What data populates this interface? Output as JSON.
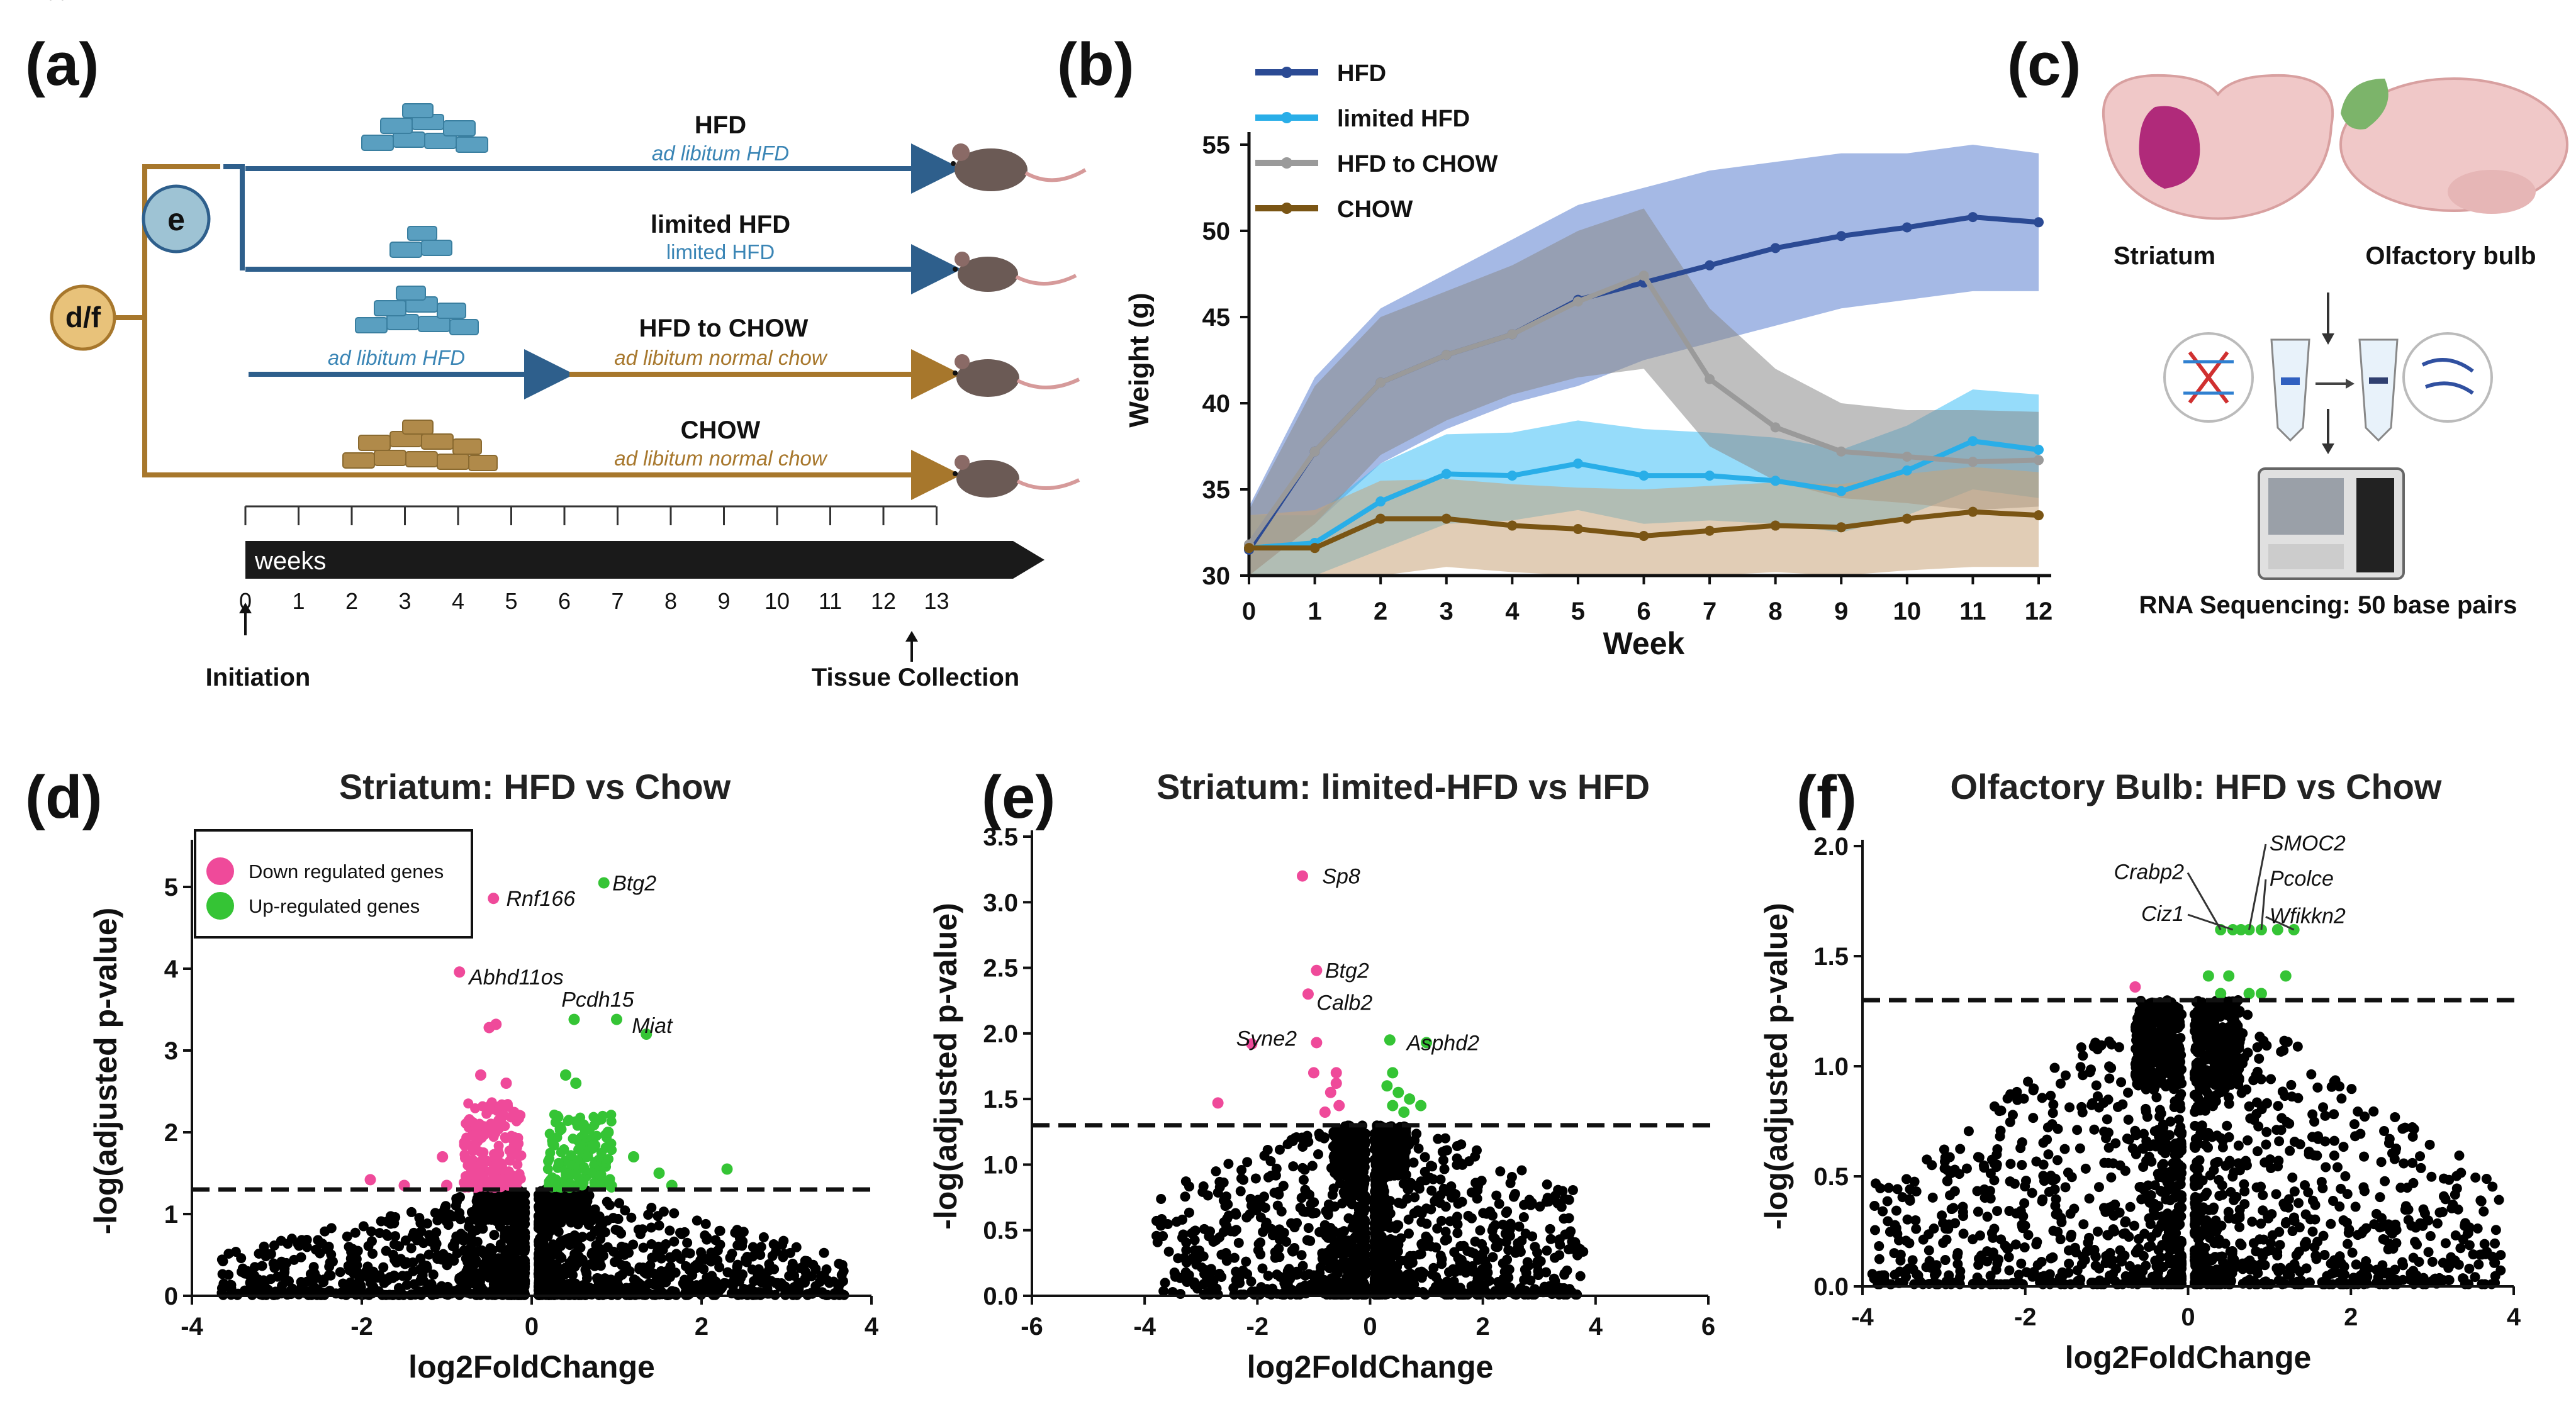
{
  "panel_labels": {
    "a": "(a)",
    "b": "(b)",
    "c": "(c)",
    "d": "(d)",
    "e": "(e)",
    "f": "(f)"
  },
  "colors": {
    "hfd": "#2b4a94",
    "limited": "#29aee8",
    "hfd_to_chow": "#9a9a9a",
    "chow": "#7a5514",
    "down": "#ef4a9a",
    "up": "#35c435",
    "black": "#000000",
    "arm_blue": "#2e5f8c",
    "arm_brown": "#a7772c"
  },
  "panel_a": {
    "node_df": "d/f",
    "node_e": "e",
    "groups": [
      {
        "name": "HFD",
        "sub": "ad libitum HFD"
      },
      {
        "name": "limited HFD",
        "sub": "limited HFD"
      },
      {
        "name": "HFD to CHOW",
        "sub_left": "ad libitum HFD",
        "sub_right": "ad libitum normal chow"
      },
      {
        "name": "CHOW",
        "sub": "ad libitum normal chow"
      }
    ],
    "timeline_label": "weeks",
    "weeks": [
      "0",
      "1",
      "2",
      "3",
      "4",
      "5",
      "6",
      "7",
      "8",
      "9",
      "10",
      "11",
      "12",
      "13"
    ],
    "initiation": "Initiation",
    "collection": "Tissue Collection"
  },
  "panel_c": {
    "striatum": "Striatum",
    "olfactory": "Olfactory bulb",
    "sequencing": "RNA Sequencing: 50 base pairs"
  },
  "chart_data": [
    {
      "panel": "b",
      "type": "line",
      "title": "",
      "xlabel": "Week",
      "ylabel": "Weight (g)",
      "xlim": [
        0,
        12
      ],
      "ylim": [
        30,
        55
      ],
      "x": [
        0,
        1,
        2,
        3,
        4,
        5,
        6,
        7,
        8,
        9,
        10,
        11,
        12
      ],
      "xticks": [
        "0",
        "1",
        "2",
        "3",
        "4",
        "5",
        "6",
        "7",
        "8",
        "9",
        "10",
        "11",
        "12"
      ],
      "yticks": [
        "30",
        "35",
        "40",
        "45",
        "50",
        "55"
      ],
      "legend": "top-left",
      "series": [
        {
          "name": "HFD",
          "values": [
            31.5,
            37.2,
            41.2,
            42.8,
            44.0,
            46.0,
            47.0,
            48.0,
            49.0,
            49.7,
            50.2,
            50.8,
            50.5
          ],
          "lower": [
            29.5,
            33.0,
            36.5,
            38.5,
            40.0,
            41.0,
            42.5,
            43.5,
            44.5,
            45.5,
            46.0,
            46.5,
            46.5
          ],
          "upper": [
            34.0,
            41.5,
            45.5,
            47.5,
            49.5,
            51.5,
            52.5,
            53.5,
            54.0,
            54.5,
            54.5,
            55.0,
            54.5
          ]
        },
        {
          "name": "limited HFD",
          "values": [
            31.6,
            31.9,
            34.3,
            35.9,
            35.8,
            36.5,
            35.8,
            35.8,
            35.5,
            34.9,
            36.1,
            37.8,
            37.3
          ],
          "lower": [
            30.0,
            30.0,
            31.5,
            33.0,
            33.2,
            33.8,
            33.0,
            33.2,
            33.0,
            32.5,
            33.5,
            35.0,
            34.5
          ],
          "upper": [
            33.5,
            33.5,
            36.5,
            38.2,
            38.3,
            39.0,
            38.5,
            38.3,
            38.0,
            37.3,
            38.7,
            40.8,
            40.5
          ]
        },
        {
          "name": "HFD to CHOW",
          "values": [
            31.8,
            37.2,
            41.2,
            42.8,
            44.0,
            45.9,
            47.4,
            41.4,
            38.6,
            37.2,
            36.9,
            36.6,
            36.7
          ],
          "lower": [
            30.0,
            33.0,
            37.0,
            39.0,
            40.5,
            41.5,
            42.0,
            37.5,
            35.5,
            34.5,
            34.2,
            33.8,
            34.0
          ],
          "upper": [
            33.8,
            41.0,
            45.0,
            46.5,
            48.0,
            50.0,
            51.3,
            45.5,
            42.0,
            40.0,
            39.6,
            39.6,
            39.5
          ]
        },
        {
          "name": "CHOW",
          "values": [
            31.6,
            31.6,
            33.3,
            33.3,
            32.9,
            32.7,
            32.3,
            32.6,
            32.9,
            32.8,
            33.3,
            33.7,
            33.5
          ],
          "lower": [
            30.0,
            30.0,
            30.0,
            30.5,
            30.2,
            30.0,
            30.0,
            30.0,
            30.2,
            30.0,
            30.3,
            30.5,
            30.5
          ],
          "upper": [
            33.5,
            33.8,
            35.5,
            35.6,
            35.3,
            35.1,
            35.0,
            35.2,
            35.4,
            35.3,
            35.9,
            36.3,
            36.0
          ]
        }
      ]
    },
    {
      "panel": "d",
      "type": "scatter",
      "title": "Striatum: HFD vs Chow",
      "xlabel": "log2FoldChange",
      "ylabel": "-log(adjusted p-value)",
      "xlim": [
        -4,
        4
      ],
      "ylim": [
        0,
        5.5
      ],
      "xticks": [
        -4,
        -2,
        0,
        2,
        4
      ],
      "yticks": [
        0,
        1,
        2,
        3,
        4,
        5
      ],
      "threshold": 1.3,
      "legend": "top-left",
      "legend_items": [
        {
          "label": "Down regulated genes",
          "color": "down"
        },
        {
          "label": "Up-regulated genes",
          "color": "up"
        }
      ],
      "labeled_points": [
        {
          "gene": "Rnf166",
          "x": -0.45,
          "y": 4.86,
          "group": "down"
        },
        {
          "gene": "Btg2",
          "x": 0.85,
          "y": 5.05,
          "group": "up"
        },
        {
          "gene": "Abhd11os",
          "x": -0.85,
          "y": 3.96,
          "group": "down"
        },
        {
          "gene": "Pcdh15",
          "x": 0.5,
          "y": 3.38,
          "group": "up"
        },
        {
          "gene": "Miat",
          "x": 1.35,
          "y": 3.2,
          "group": "up"
        }
      ],
      "extra_points": [
        {
          "x": -0.5,
          "y": 3.28,
          "group": "down"
        },
        {
          "x": -0.42,
          "y": 3.32,
          "group": "down"
        },
        {
          "x": -0.6,
          "y": 2.7,
          "group": "down"
        },
        {
          "x": -0.3,
          "y": 2.6,
          "group": "down"
        },
        {
          "x": 0.4,
          "y": 2.7,
          "group": "up"
        },
        {
          "x": 0.52,
          "y": 2.6,
          "group": "up"
        },
        {
          "x": 1.0,
          "y": 3.38,
          "group": "up"
        },
        {
          "x": 0.9,
          "y": 2.0,
          "group": "up"
        },
        {
          "x": 1.2,
          "y": 1.7,
          "group": "up"
        },
        {
          "x": 1.5,
          "y": 1.5,
          "group": "up"
        },
        {
          "x": 1.65,
          "y": 1.35,
          "group": "up"
        },
        {
          "x": 2.3,
          "y": 1.55,
          "group": "up"
        },
        {
          "x": -1.9,
          "y": 1.42,
          "group": "down"
        },
        {
          "x": -1.5,
          "y": 1.35,
          "group": "down"
        },
        {
          "x": -1.05,
          "y": 1.7,
          "group": "down"
        },
        {
          "x": -1.0,
          "y": 1.35,
          "group": "down"
        }
      ]
    },
    {
      "panel": "e",
      "type": "scatter",
      "title": "Striatum: limited-HFD vs HFD",
      "xlabel": "log2FoldChange",
      "ylabel": "-log(adjusted p-value)",
      "xlim": [
        -6,
        6
      ],
      "ylim": [
        0,
        3.5
      ],
      "xticks": [
        -6,
        -4,
        -2,
        0,
        2,
        4,
        6
      ],
      "yticks": [
        "0.0",
        "0.5",
        "1.0",
        "1.5",
        "2.0",
        "2.5",
        "3.0",
        "3.5"
      ],
      "threshold": 1.3,
      "labeled_points": [
        {
          "gene": "Sp8",
          "x": -1.2,
          "y": 3.2,
          "group": "down"
        },
        {
          "gene": "Btg2",
          "x": -0.95,
          "y": 2.48,
          "group": "down"
        },
        {
          "gene": "Calb2",
          "x": -1.1,
          "y": 2.3,
          "group": "down"
        },
        {
          "gene": "Syne2",
          "x": -0.95,
          "y": 1.93,
          "group": "down"
        },
        {
          "gene": "Asphd2",
          "x": 1.0,
          "y": 1.93,
          "group": "up"
        }
      ],
      "extra_points": [
        {
          "x": -2.7,
          "y": 1.47,
          "group": "down"
        },
        {
          "x": -2.1,
          "y": 1.92,
          "group": "down"
        },
        {
          "x": -1.0,
          "y": 1.7,
          "group": "down"
        },
        {
          "x": -0.6,
          "y": 1.7,
          "group": "down"
        },
        {
          "x": -0.55,
          "y": 1.45,
          "group": "down"
        },
        {
          "x": -0.6,
          "y": 1.62,
          "group": "down"
        },
        {
          "x": -0.8,
          "y": 1.4,
          "group": "down"
        },
        {
          "x": -0.7,
          "y": 1.55,
          "group": "down"
        },
        {
          "x": 0.35,
          "y": 1.95,
          "group": "up"
        },
        {
          "x": 0.4,
          "y": 1.7,
          "group": "up"
        },
        {
          "x": 0.5,
          "y": 1.55,
          "group": "up"
        },
        {
          "x": 0.7,
          "y": 1.5,
          "group": "up"
        },
        {
          "x": 0.4,
          "y": 1.45,
          "group": "up"
        },
        {
          "x": 0.6,
          "y": 1.4,
          "group": "up"
        },
        {
          "x": 0.3,
          "y": 1.6,
          "group": "up"
        },
        {
          "x": 0.9,
          "y": 1.45,
          "group": "up"
        }
      ]
    },
    {
      "panel": "f",
      "type": "scatter",
      "title": "Olfactory Bulb: HFD vs Chow",
      "xlabel": "log2FoldChange",
      "ylabel": "-log(adjusted p-value)",
      "xlim": [
        -4,
        4
      ],
      "ylim": [
        0,
        2.0
      ],
      "xticks": [
        -4,
        -2,
        0,
        2,
        4
      ],
      "yticks": [
        "0.0",
        "0.5",
        "1.0",
        "1.5",
        "2.0"
      ],
      "threshold": 1.3,
      "labeled_points": [
        {
          "gene": "Crabp2",
          "x": 0.4,
          "y": 1.62,
          "group": "up"
        },
        {
          "gene": "Ciz1",
          "x": 0.55,
          "y": 1.62,
          "group": "up"
        },
        {
          "gene": "SMOC2",
          "x": 0.75,
          "y": 1.62,
          "group": "up"
        },
        {
          "gene": "Pcolce",
          "x": 0.9,
          "y": 1.62,
          "group": "up"
        },
        {
          "gene": "Wfikkn2",
          "x": 1.3,
          "y": 1.62,
          "group": "up"
        }
      ],
      "extra_points": [
        {
          "x": 0.65,
          "y": 1.62,
          "group": "up"
        },
        {
          "x": 1.1,
          "y": 1.62,
          "group": "up"
        },
        {
          "x": 0.25,
          "y": 1.41,
          "group": "up"
        },
        {
          "x": 0.5,
          "y": 1.41,
          "group": "up"
        },
        {
          "x": 1.2,
          "y": 1.41,
          "group": "up"
        },
        {
          "x": 0.4,
          "y": 1.33,
          "group": "up"
        },
        {
          "x": 0.75,
          "y": 1.33,
          "group": "up"
        },
        {
          "x": 0.9,
          "y": 1.33,
          "group": "up"
        },
        {
          "x": -0.65,
          "y": 1.36,
          "group": "down"
        }
      ]
    }
  ]
}
